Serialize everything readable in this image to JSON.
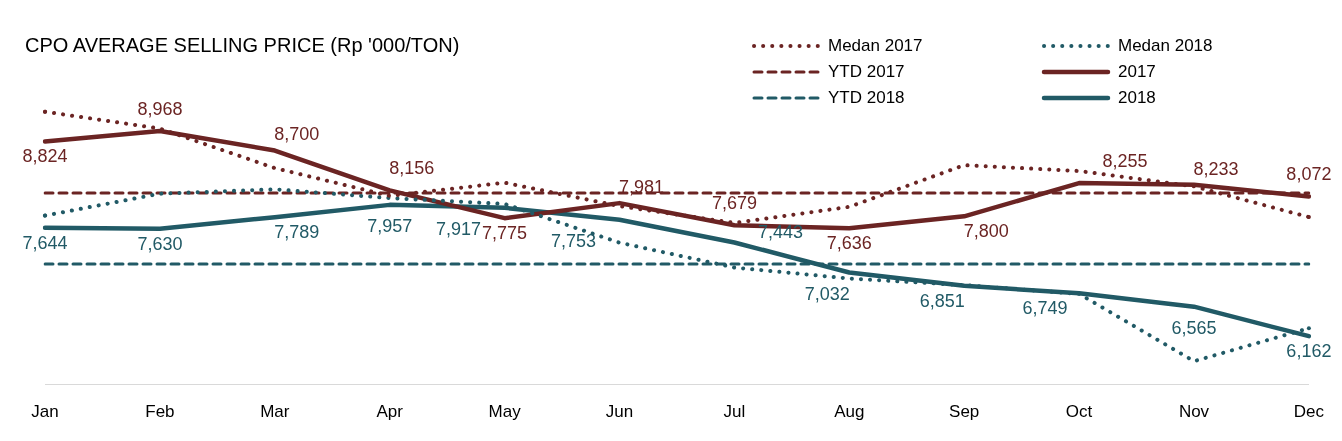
{
  "chart_data": {
    "type": "line",
    "title": "CPO AVERAGE SELLING PRICE (Rp '000/TON)",
    "categories": [
      "Jan",
      "Feb",
      "Mar",
      "Apr",
      "May",
      "Jun",
      "Jul",
      "Aug",
      "Sep",
      "Oct",
      "Nov",
      "Dec"
    ],
    "tick_labels": "x",
    "grid": false,
    "legend": "top right",
    "marker": "none",
    "series": [
      {
        "name": "Medan 2017",
        "color": "#6b2423",
        "line_style": "dotted",
        "values": [
          9230,
          9000,
          8460,
          8080,
          8260,
          7940,
          7710,
          7930,
          8500,
          8420,
          8210,
          7790
        ]
      },
      {
        "name": "Medan 2018",
        "color": "#215a66",
        "line_style": "dotted",
        "values": [
          7810,
          8110,
          8170,
          8050,
          7970,
          7440,
          7100,
          6950,
          6860,
          6740,
          5820,
          6270
        ]
      },
      {
        "name": "YTD 2017",
        "color": "#6b2423",
        "line_style": "dashed",
        "values": [
          8120,
          8120,
          8120,
          8120,
          8120,
          8120,
          8120,
          8120,
          8120,
          8120,
          8120,
          8120
        ]
      },
      {
        "name": "2017",
        "color": "#6b2423",
        "line_style": "solid",
        "values": [
          8824,
          8968,
          8700,
          8156,
          7775,
          7981,
          7679,
          7636,
          7800,
          8255,
          8233,
          8072
        ],
        "value_labels": [
          "8,824",
          "8,968",
          "8,700",
          "8,156",
          "7,775",
          "7,981",
          "7,679",
          "7,636",
          "7,800",
          "8,255",
          "8,233",
          "8,072"
        ]
      },
      {
        "name": "YTD 2018",
        "color": "#215a66",
        "line_style": "dashed",
        "values": [
          7150,
          7150,
          7150,
          7150,
          7150,
          7150,
          7150,
          7150,
          7150,
          7150,
          7150,
          7150
        ]
      },
      {
        "name": "2018",
        "color": "#215a66",
        "line_style": "solid",
        "values": [
          7644,
          7630,
          7789,
          7957,
          7917,
          7753,
          7443,
          7032,
          6851,
          6749,
          6565,
          6162
        ],
        "value_labels": [
          "7,644",
          "7,630",
          "7,789",
          "7,957",
          "7,917",
          "7,753",
          "7,443",
          "7,032",
          "6,851",
          "6,749",
          "6,565",
          "6,162"
        ]
      }
    ]
  }
}
